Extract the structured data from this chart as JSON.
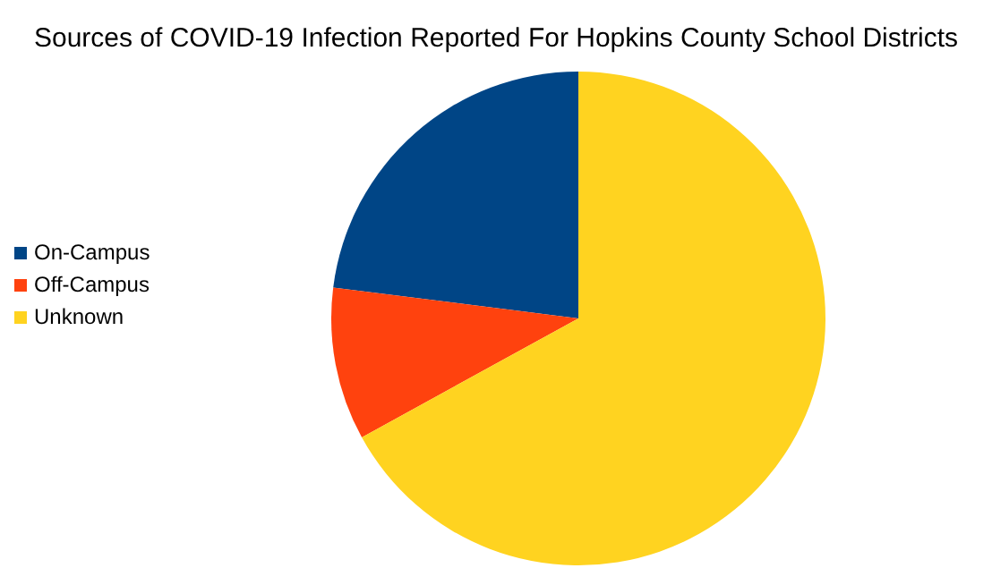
{
  "chart_data": {
    "type": "pie",
    "title": "Sources of COVID-19 Infection Reported For Hopkins County School Districts",
    "categories": [
      "On-Campus",
      "Off-Campus",
      "Unknown"
    ],
    "values": [
      23,
      10,
      67
    ],
    "colors": [
      "#004586",
      "#ff420e",
      "#ffd320"
    ],
    "legend": "left"
  }
}
